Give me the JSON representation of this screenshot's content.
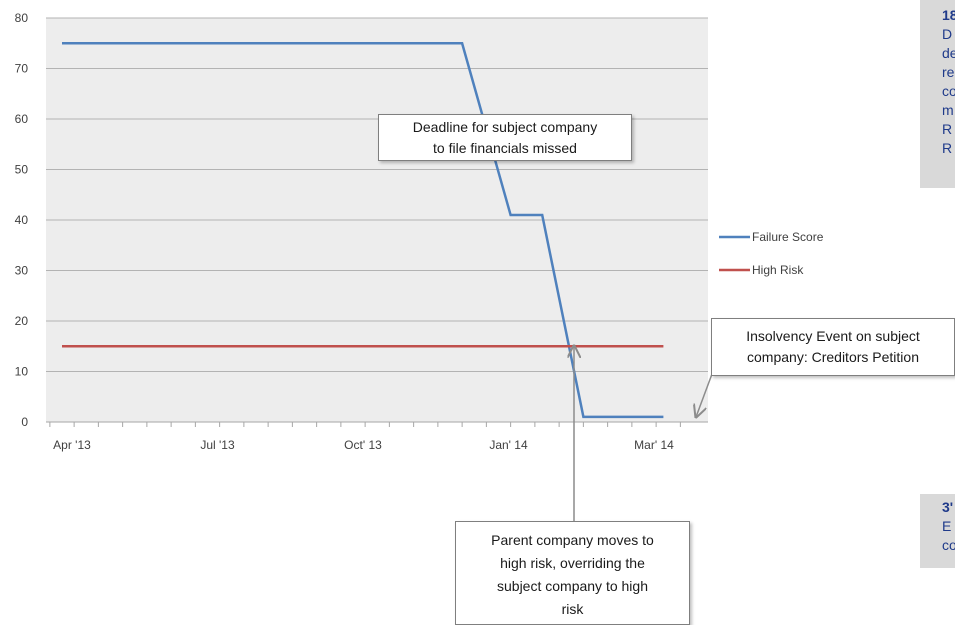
{
  "chart_data": {
    "type": "line",
    "x_tick_labels": [
      "Apr '13",
      "Jul '13",
      "Oct' 13",
      "Jan' 14",
      "Mar' 14"
    ],
    "y_ticks": [
      0,
      10,
      20,
      30,
      40,
      50,
      60,
      70,
      80
    ],
    "ylim": [
      0,
      80
    ],
    "grid": true,
    "legend_position": "right",
    "series": [
      {
        "name": "Failure Score",
        "color": "#4f81bd",
        "points": [
          {
            "x": 0,
            "y": 75
          },
          {
            "x": 8.25,
            "y": 75
          },
          {
            "x": 9.25,
            "y": 41
          },
          {
            "x": 9.9,
            "y": 41
          },
          {
            "x": 10.75,
            "y": 1
          },
          {
            "x": 12.4,
            "y": 1
          }
        ]
      },
      {
        "name": "High Risk",
        "color": "#c0504d",
        "points": [
          {
            "x": 0,
            "y": 15
          },
          {
            "x": 12.4,
            "y": 15
          }
        ]
      }
    ],
    "annotations": [
      {
        "id": "deadline",
        "lines": [
          "Deadline for subject company",
          "to file financials missed"
        ]
      },
      {
        "id": "insolvency",
        "lines": [
          "Insolvency Event on subject",
          "company: Creditors Petition"
        ]
      },
      {
        "id": "parent",
        "lines": [
          "Parent company moves to",
          "high risk, overriding the",
          "subject company to high",
          "risk"
        ]
      }
    ]
  },
  "side_panels": {
    "top": {
      "title": "18",
      "lines": [
        "D",
        "de",
        "re",
        "co",
        "m",
        "R",
        "R"
      ]
    },
    "bottom": {
      "title": "3'",
      "lines": [
        "E",
        "co"
      ]
    }
  }
}
